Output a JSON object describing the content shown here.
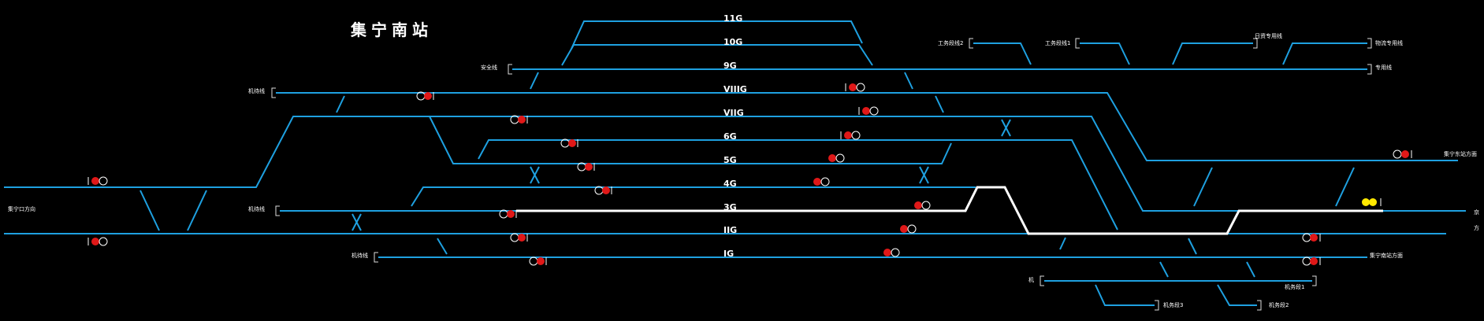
{
  "station": {
    "title": "集宁南站"
  },
  "tracks": [
    {
      "id": "track-11G",
      "label": "11G"
    },
    {
      "id": "track-10G",
      "label": "10G"
    },
    {
      "id": "track-9G",
      "label": "9G"
    },
    {
      "id": "track-VIIIG",
      "label": "VIIIG"
    },
    {
      "id": "track-VIIG",
      "label": "VIIG"
    },
    {
      "id": "track-6G",
      "label": "6G"
    },
    {
      "id": "track-5G",
      "label": "5G"
    },
    {
      "id": "track-4G",
      "label": "4G"
    },
    {
      "id": "track-3G",
      "label": "3G"
    },
    {
      "id": "track-IIG",
      "label": "IIG"
    },
    {
      "id": "track-IG",
      "label": "IG"
    }
  ],
  "side_labels": {
    "west_exit": "集宁口方向",
    "siding_upper_left": "机待线",
    "siding_middle_left": "机待线",
    "siding_lower_left": "机待线",
    "safety_line": "安全线",
    "work_siding_2": "工务段线2",
    "work_siding_1": "工务段线1",
    "special_line_a": "日资专用线",
    "special_line_b": "物流专用线",
    "special_line_c": "专用线",
    "east_exit_upper": "集宁东站方面",
    "east_exit_lower": "集宁南站方面",
    "right_edge_1": "京",
    "right_edge_2": "方",
    "depot": "机",
    "depot_line_1": "机务段1",
    "depot_line_2": "机务段2",
    "depot_line_3": "机务段3"
  },
  "colors": {
    "track": "#1ea0e0",
    "active_route": "#ffffff",
    "signal_stop": "#e01818",
    "signal_caution": "#ffe800",
    "background": "#000000"
  }
}
